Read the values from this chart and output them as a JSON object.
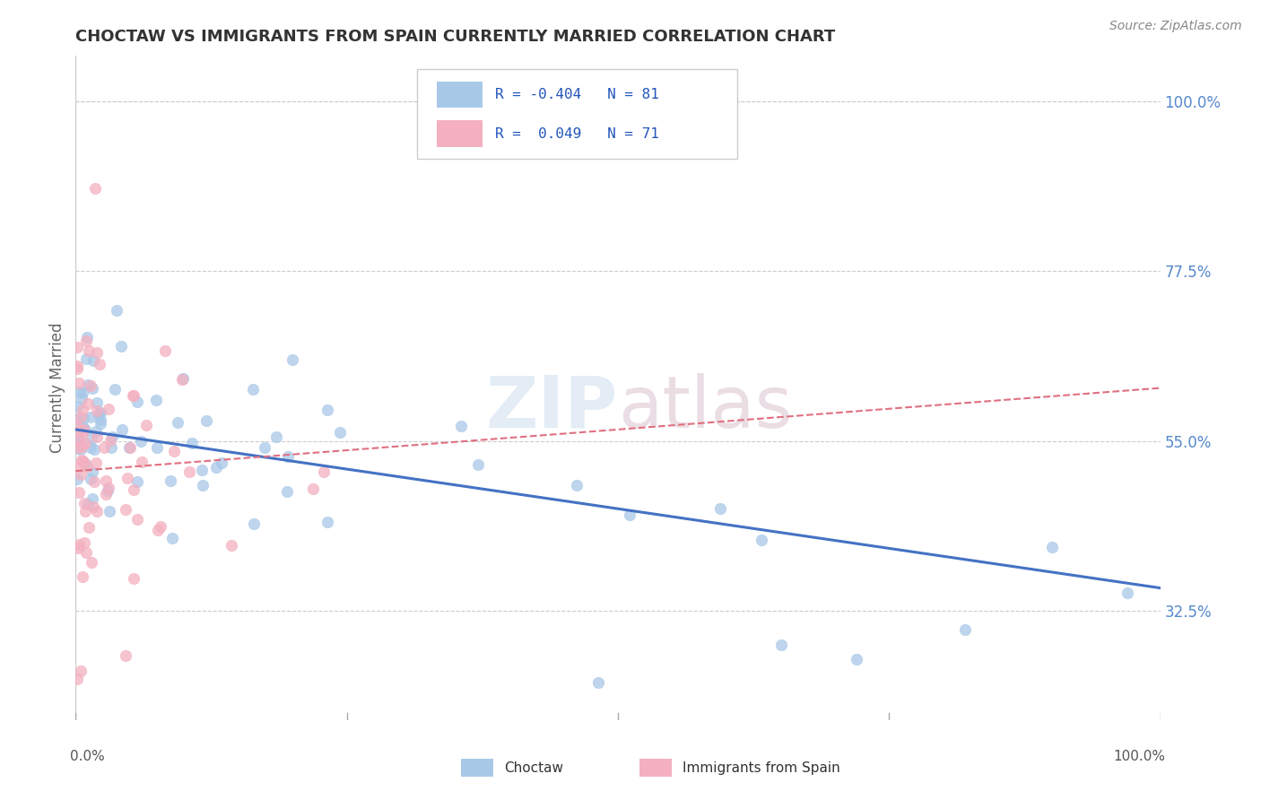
{
  "title": "CHOCTAW VS IMMIGRANTS FROM SPAIN CURRENTLY MARRIED CORRELATION CHART",
  "source": "Source: ZipAtlas.com",
  "ylabel": "Currently Married",
  "right_yticks": [
    0.325,
    0.55,
    0.775,
    1.0
  ],
  "right_yticklabels": [
    "32.5%",
    "55.0%",
    "77.5%",
    "100.0%"
  ],
  "choctaw_color": "#a8c8e8",
  "spain_color": "#f4b0c0",
  "choctaw_line_color": "#4472c4",
  "spain_line_color": "#e07080",
  "background_color": "#ffffff",
  "watermark": "ZIPatlas",
  "xlim": [
    0.0,
    1.0
  ],
  "ylim": [
    0.18,
    1.06
  ],
  "choctaw_trend_start": 0.565,
  "choctaw_trend_end": 0.355,
  "spain_trend_start": 0.51,
  "spain_trend_end": 0.62,
  "legend_r1": "R = -0.404",
  "legend_n1": "N = 81",
  "legend_r2": "R =  0.049",
  "legend_n2": "N = 71"
}
